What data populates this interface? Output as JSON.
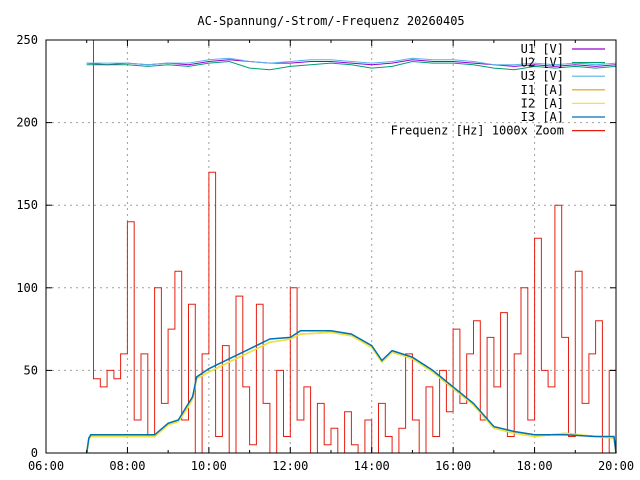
{
  "chart_data": {
    "type": "line",
    "title": "AC-Spannung/-Strom/-Frequenz 20260405",
    "xlabel": "",
    "ylabel": "",
    "xlim": [
      6,
      20
    ],
    "ylim": [
      0,
      250
    ],
    "grid": true,
    "legend_position": "top-right",
    "x_ticks": [
      {
        "v": 6,
        "label": "06:00"
      },
      {
        "v": 8,
        "label": "08:00"
      },
      {
        "v": 10,
        "label": "10:00"
      },
      {
        "v": 12,
        "label": "12:00"
      },
      {
        "v": 14,
        "label": "14:00"
      },
      {
        "v": 16,
        "label": "16:00"
      },
      {
        "v": 18,
        "label": "18:00"
      },
      {
        "v": 20,
        "label": "20:00"
      }
    ],
    "y_ticks": [
      {
        "v": 0,
        "label": "0"
      },
      {
        "v": 50,
        "label": "50"
      },
      {
        "v": 100,
        "label": "100"
      },
      {
        "v": 150,
        "label": "150"
      },
      {
        "v": 200,
        "label": "200"
      },
      {
        "v": 250,
        "label": "250"
      }
    ],
    "series": [
      {
        "name": "U1 [V]",
        "color": "#9400d3",
        "x": [
          7,
          7.5,
          8,
          8.5,
          9,
          9.5,
          10,
          10.5,
          11,
          11.5,
          12,
          12.5,
          13,
          13.5,
          14,
          14.5,
          15,
          15.5,
          16,
          16.5,
          17,
          17.5,
          18,
          18.5,
          19,
          19.5,
          20
        ],
        "values": [
          236,
          235,
          236,
          235,
          236,
          235,
          237,
          238,
          237,
          236,
          236,
          237,
          237,
          236,
          235,
          236,
          238,
          237,
          237,
          236,
          235,
          234,
          235,
          234,
          235,
          234,
          235
        ]
      },
      {
        "name": "U2 [V]",
        "color": "#009e73",
        "x": [
          7,
          7.5,
          8,
          8.5,
          9,
          9.5,
          10,
          10.5,
          11,
          11.5,
          12,
          12.5,
          13,
          13.5,
          14,
          14.5,
          15,
          15.5,
          16,
          16.5,
          17,
          17.5,
          18,
          18.5,
          19,
          19.5,
          20
        ],
        "values": [
          235,
          235,
          235,
          234,
          235,
          234,
          236,
          237,
          233,
          232,
          234,
          235,
          236,
          235,
          233,
          234,
          237,
          236,
          236,
          235,
          233,
          232,
          234,
          233,
          234,
          233,
          234
        ]
      },
      {
        "name": "U3 [V]",
        "color": "#56b4e9",
        "x": [
          7,
          7.5,
          8,
          8.5,
          9,
          9.5,
          10,
          10.5,
          11,
          11.5,
          12,
          12.5,
          13,
          13.5,
          14,
          14.5,
          15,
          15.5,
          16,
          16.5,
          17,
          17.5,
          18,
          18.5,
          19,
          19.5,
          20
        ],
        "values": [
          236,
          236,
          236,
          235,
          236,
          236,
          238,
          239,
          237,
          236,
          237,
          238,
          238,
          237,
          236,
          237,
          239,
          238,
          238,
          237,
          235,
          235,
          236,
          235,
          236,
          235,
          236
        ]
      },
      {
        "name": "I1 [A]",
        "color": "#e69f00",
        "x": [
          7,
          7.05,
          7.1,
          8.67,
          9,
          9.25,
          9.5,
          9.6,
          9.7,
          10,
          10.5,
          11,
          11.5,
          12,
          12.25,
          13,
          13.5,
          14,
          14.25,
          14.5,
          15,
          15.5,
          16,
          16.5,
          17,
          17.5,
          18,
          18.75,
          19.5,
          19.95,
          20
        ],
        "values": [
          0,
          8,
          10,
          10,
          17,
          19,
          28,
          33,
          45,
          49,
          55,
          61,
          67,
          69,
          72,
          73,
          71,
          64,
          55,
          61,
          57,
          49,
          39,
          29,
          15,
          12,
          10,
          12,
          10,
          9,
          0
        ]
      },
      {
        "name": "I2 [A]",
        "color": "#f0e442",
        "x": [
          7,
          7.05,
          7.1,
          8.67,
          9,
          9.25,
          9.5,
          9.6,
          9.7,
          10,
          10.5,
          11,
          11.5,
          12,
          12.25,
          13,
          13.5,
          14,
          14.25,
          14.5,
          15,
          15.5,
          16,
          16.5,
          17,
          17.5,
          18,
          18.75,
          19.5,
          19.95,
          20
        ],
        "values": [
          0,
          8,
          10,
          10,
          17,
          19,
          28,
          33,
          45,
          49,
          55,
          61,
          67,
          69,
          72,
          73,
          71,
          64,
          55,
          61,
          57,
          49,
          39,
          29,
          15,
          12,
          10,
          12,
          10,
          9,
          0
        ]
      },
      {
        "name": "I3 [A]",
        "color": "#0072b2",
        "x": [
          7,
          7.05,
          7.1,
          8.67,
          9,
          9.25,
          9.5,
          9.6,
          9.7,
          10,
          10.5,
          11,
          11.5,
          12,
          12.25,
          13,
          13.5,
          14,
          14.25,
          14.5,
          15,
          15.5,
          16,
          16.5,
          17,
          17.5,
          18,
          18.75,
          19.5,
          19.95,
          20
        ],
        "values": [
          0,
          9,
          11,
          11,
          18,
          20,
          30,
          34,
          46,
          51,
          57,
          63,
          69,
          70,
          74,
          74,
          72,
          65,
          56,
          62,
          58,
          50,
          40,
          30,
          16,
          13,
          11,
          11,
          10,
          10,
          0
        ]
      },
      {
        "name": "Frequenz [Hz] 1000x Zoom",
        "color": "#e51e10",
        "x_start": 7,
        "x_step_minutes": 10,
        "values": [
          250,
          45,
          40,
          50,
          45,
          60,
          140,
          20,
          60,
          10,
          100,
          30,
          75,
          110,
          20,
          90,
          0,
          60,
          170,
          10,
          65,
          0,
          95,
          40,
          5,
          90,
          30,
          0,
          50,
          10,
          100,
          20,
          40,
          0,
          30,
          5,
          15,
          0,
          25,
          5,
          0,
          20,
          0,
          30,
          10,
          0,
          15,
          60,
          20,
          0,
          40,
          10,
          50,
          25,
          75,
          30,
          60,
          80,
          20,
          70,
          40,
          85,
          10,
          60,
          100,
          20,
          130,
          50,
          40,
          150,
          70,
          10,
          110,
          30,
          60,
          80,
          0,
          50,
          250
        ]
      }
    ]
  }
}
